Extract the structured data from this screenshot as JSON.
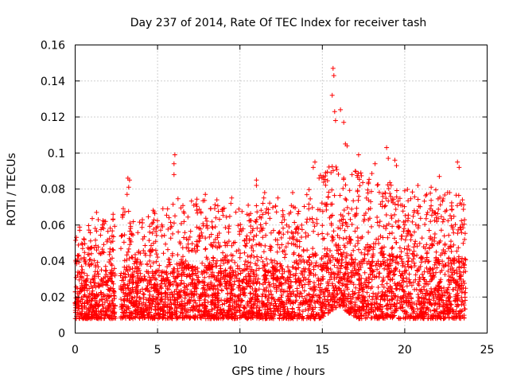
{
  "chart_data": {
    "type": "scatter",
    "title": "Day 237 of 2014, Rate Of TEC Index for receiver tash",
    "xlabel": "GPS time / hours",
    "ylabel": "ROTI / TECUs",
    "xlim": [
      0,
      25
    ],
    "ylim": [
      0,
      0.16
    ],
    "xticks": [
      0,
      5,
      10,
      15,
      20,
      25
    ],
    "xtick_labels": [
      "0",
      "5",
      "10",
      "15",
      "20",
      "25"
    ],
    "yticks": [
      0,
      0.02,
      0.04,
      0.06,
      0.08,
      0.1,
      0.12,
      0.14,
      0.16
    ],
    "ytick_labels": [
      "0",
      "0.02",
      "0.04",
      "0.06",
      "0.08",
      "0.1",
      "0.12",
      "0.14",
      "0.16"
    ],
    "grid": true,
    "marker": "+",
    "color": "#ff0000",
    "gaps": [
      [
        2.45,
        2.75
      ]
    ],
    "envelope": {
      "x": [
        0,
        1,
        2,
        3,
        4,
        5,
        6,
        7,
        8,
        9,
        10,
        11,
        12,
        13,
        14,
        15,
        15.5,
        16,
        16.5,
        17,
        18,
        19,
        20,
        21,
        22,
        23,
        23.7
      ],
      "upper": [
        0.045,
        0.05,
        0.05,
        0.055,
        0.05,
        0.055,
        0.06,
        0.06,
        0.06,
        0.055,
        0.055,
        0.06,
        0.06,
        0.06,
        0.065,
        0.075,
        0.08,
        0.08,
        0.07,
        0.075,
        0.075,
        0.07,
        0.065,
        0.065,
        0.065,
        0.065,
        0.06
      ],
      "lower": [
        0.008,
        0.008,
        0.008,
        0.008,
        0.008,
        0.008,
        0.008,
        0.008,
        0.008,
        0.008,
        0.008,
        0.008,
        0.008,
        0.008,
        0.008,
        0.008,
        0.012,
        0.015,
        0.012,
        0.008,
        0.008,
        0.008,
        0.008,
        0.008,
        0.008,
        0.008,
        0.008
      ]
    },
    "peaks": [
      {
        "x": 15.65,
        "y": 0.147
      },
      {
        "x": 15.7,
        "y": 0.143
      },
      {
        "x": 15.6,
        "y": 0.132
      },
      {
        "x": 15.75,
        "y": 0.123
      },
      {
        "x": 16.1,
        "y": 0.124
      },
      {
        "x": 16.3,
        "y": 0.117
      },
      {
        "x": 15.8,
        "y": 0.118
      },
      {
        "x": 16.4,
        "y": 0.105
      },
      {
        "x": 16.5,
        "y": 0.104
      },
      {
        "x": 18.9,
        "y": 0.103
      },
      {
        "x": 19.0,
        "y": 0.097
      },
      {
        "x": 19.5,
        "y": 0.093
      },
      {
        "x": 19.4,
        "y": 0.096
      },
      {
        "x": 6.05,
        "y": 0.099
      },
      {
        "x": 6.0,
        "y": 0.094
      },
      {
        "x": 6.0,
        "y": 0.088
      },
      {
        "x": 3.2,
        "y": 0.086
      },
      {
        "x": 3.3,
        "y": 0.085
      },
      {
        "x": 3.25,
        "y": 0.081
      },
      {
        "x": 23.2,
        "y": 0.095
      },
      {
        "x": 23.3,
        "y": 0.092
      },
      {
        "x": 14.55,
        "y": 0.095
      },
      {
        "x": 14.45,
        "y": 0.092
      },
      {
        "x": 17.2,
        "y": 0.099
      },
      {
        "x": 18.2,
        "y": 0.094
      },
      {
        "x": 22.1,
        "y": 0.087
      },
      {
        "x": 20.8,
        "y": 0.082
      },
      {
        "x": 11.0,
        "y": 0.085
      },
      {
        "x": 11.0,
        "y": 0.082
      },
      {
        "x": 3.15,
        "y": 0.077
      },
      {
        "x": 1.3,
        "y": 0.067
      },
      {
        "x": 1.4,
        "y": 0.063
      },
      {
        "x": 2.3,
        "y": 0.066
      },
      {
        "x": 7.9,
        "y": 0.077
      },
      {
        "x": 9.5,
        "y": 0.075
      },
      {
        "x": 8.6,
        "y": 0.074
      },
      {
        "x": 13.2,
        "y": 0.078
      },
      {
        "x": 12.3,
        "y": 0.075
      },
      {
        "x": 7.2,
        "y": 0.071
      },
      {
        "x": 9.45,
        "y": 0.072
      },
      {
        "x": 10.5,
        "y": 0.071
      },
      {
        "x": 11.5,
        "y": 0.078
      },
      {
        "x": 21.6,
        "y": 0.081
      },
      {
        "x": 22.6,
        "y": 0.078
      },
      {
        "x": 23.5,
        "y": 0.074
      },
      {
        "x": 20.0,
        "y": 0.079
      },
      {
        "x": 17.8,
        "y": 0.083
      },
      {
        "x": 16.8,
        "y": 0.088
      },
      {
        "x": 15.2,
        "y": 0.089
      },
      {
        "x": 14.8,
        "y": 0.086
      }
    ],
    "n_points": 4200
  }
}
